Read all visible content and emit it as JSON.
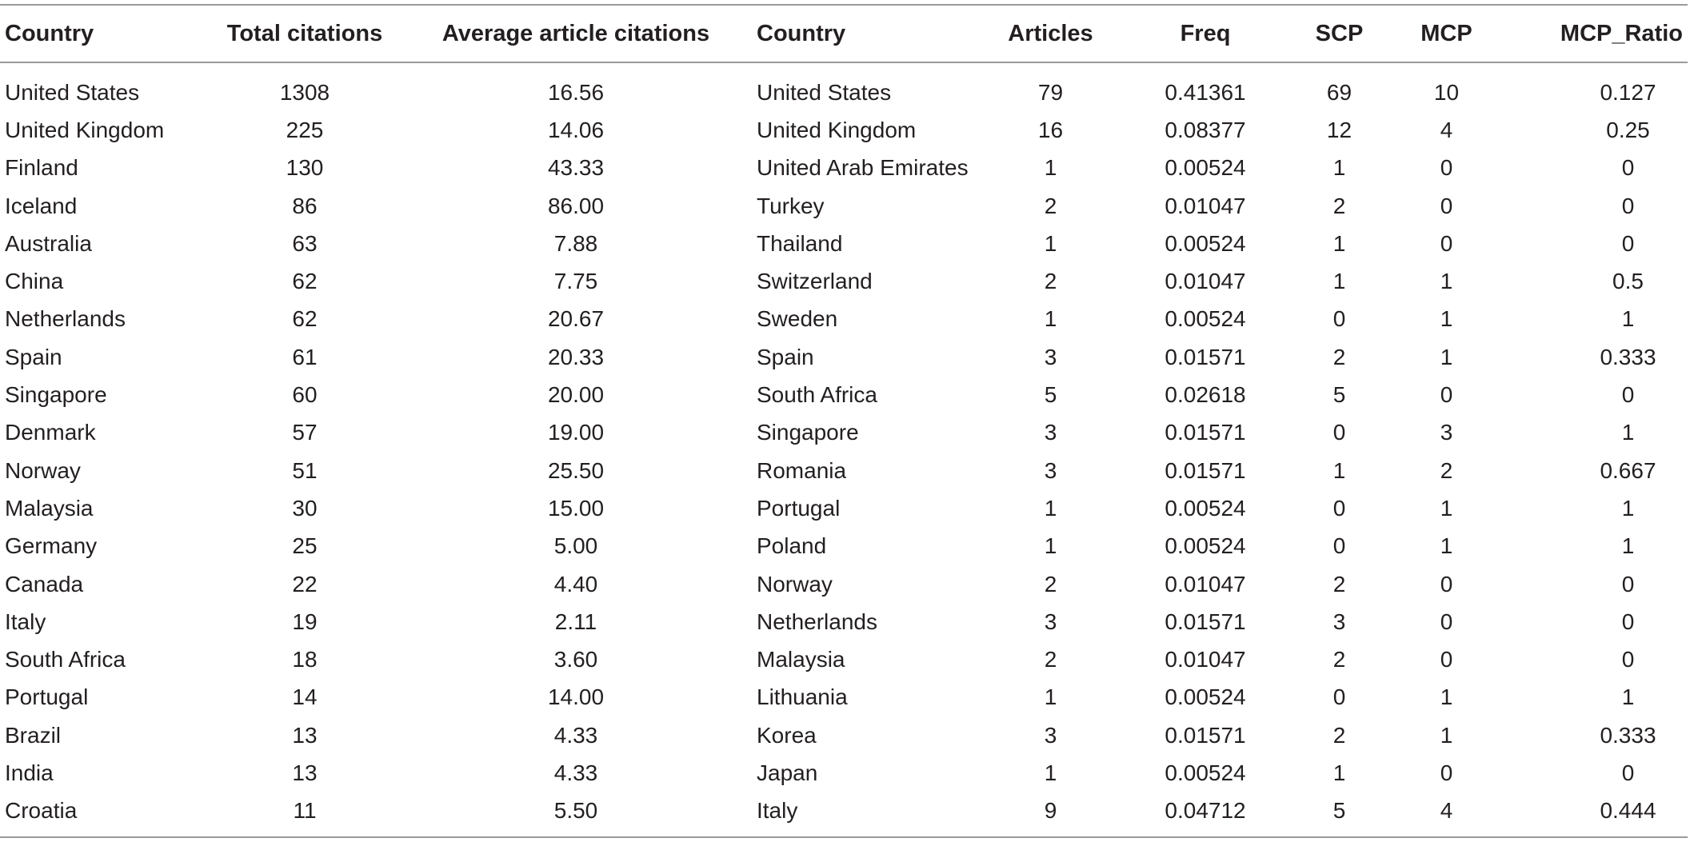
{
  "headers": [
    "Country",
    "Total citations",
    "Average article citations",
    "Country",
    "Articles",
    "Freq",
    "SCP",
    "MCP",
    "MCP_Ratio"
  ],
  "rows": [
    [
      "United States",
      "1308",
      "16.56",
      "United States",
      "79",
      "0.41361",
      "69",
      "10",
      "0.127"
    ],
    [
      "United Kingdom",
      "225",
      "14.06",
      "United Kingdom",
      "16",
      "0.08377",
      "12",
      "4",
      "0.25"
    ],
    [
      "Finland",
      "130",
      "43.33",
      "United Arab Emirates",
      "1",
      "0.00524",
      "1",
      "0",
      "0"
    ],
    [
      "Iceland",
      "86",
      "86.00",
      "Turkey",
      "2",
      "0.01047",
      "2",
      "0",
      "0"
    ],
    [
      "Australia",
      "63",
      "7.88",
      "Thailand",
      "1",
      "0.00524",
      "1",
      "0",
      "0"
    ],
    [
      "China",
      "62",
      "7.75",
      "Switzerland",
      "2",
      "0.01047",
      "1",
      "1",
      "0.5"
    ],
    [
      "Netherlands",
      "62",
      "20.67",
      "Sweden",
      "1",
      "0.00524",
      "0",
      "1",
      "1"
    ],
    [
      "Spain",
      "61",
      "20.33",
      "Spain",
      "3",
      "0.01571",
      "2",
      "1",
      "0.333"
    ],
    [
      "Singapore",
      "60",
      "20.00",
      "South Africa",
      "5",
      "0.02618",
      "5",
      "0",
      "0"
    ],
    [
      "Denmark",
      "57",
      "19.00",
      "Singapore",
      "3",
      "0.01571",
      "0",
      "3",
      "1"
    ],
    [
      "Norway",
      "51",
      "25.50",
      "Romania",
      "3",
      "0.01571",
      "1",
      "2",
      "0.667"
    ],
    [
      "Malaysia",
      "30",
      "15.00",
      "Portugal",
      "1",
      "0.00524",
      "0",
      "1",
      "1"
    ],
    [
      "Germany",
      "25",
      "5.00",
      "Poland",
      "1",
      "0.00524",
      "0",
      "1",
      "1"
    ],
    [
      "Canada",
      "22",
      "4.40",
      "Norway",
      "2",
      "0.01047",
      "2",
      "0",
      "0"
    ],
    [
      "Italy",
      "19",
      "2.11",
      "Netherlands",
      "3",
      "0.01571",
      "3",
      "0",
      "0"
    ],
    [
      "South Africa",
      "18",
      "3.60",
      "Malaysia",
      "2",
      "0.01047",
      "2",
      "0",
      "0"
    ],
    [
      "Portugal",
      "14",
      "14.00",
      "Lithuania",
      "1",
      "0.00524",
      "0",
      "1",
      "1"
    ],
    [
      "Brazil",
      "13",
      "4.33",
      "Korea",
      "3",
      "0.01571",
      "2",
      "1",
      "0.333"
    ],
    [
      "India",
      "13",
      "4.33",
      "Japan",
      "1",
      "0.00524",
      "1",
      "0",
      "0"
    ],
    [
      "Croatia",
      "11",
      "5.50",
      "Italy",
      "9",
      "0.04712",
      "5",
      "4",
      "0.444"
    ]
  ]
}
